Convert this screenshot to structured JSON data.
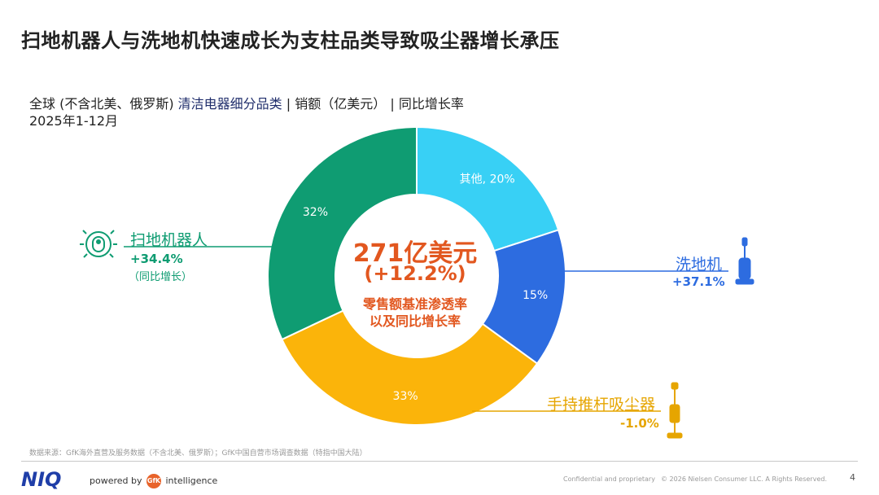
{
  "title": "扫地机器人与洗地机快速成长为支柱品类导致吸尘器增长承压",
  "subtitle": {
    "prefix": "全球 (不含北美、俄罗斯) ",
    "highlight": "清洁电器细分品类",
    "suffix": " | 销额（亿美元） | 同比增长率",
    "period": "2025年1-12月"
  },
  "center": {
    "amount": "271亿美元",
    "growth": "(+12.2%)",
    "desc_line1": "零售额基准渗透率",
    "desc_line2": "以及同比增长率"
  },
  "chart_data": {
    "type": "pie",
    "donut": true,
    "slices": [
      {
        "key": "other",
        "label": "其他, 20%",
        "value": 20,
        "color": "#38d0f5"
      },
      {
        "key": "mop",
        "label": "15%",
        "value": 15,
        "color": "#2d6ce0"
      },
      {
        "key": "vacuum",
        "label": "33%",
        "value": 33,
        "color": "#fbb40a"
      },
      {
        "key": "robot",
        "label": "32%",
        "value": 32,
        "color": "#0f9c72"
      }
    ]
  },
  "categories": {
    "robot": {
      "name": "扫地机器人",
      "growth": "+34.4%",
      "note": "（同比增长）",
      "color": "#0f9c72"
    },
    "mop": {
      "name": "洗地机",
      "growth": "+37.1%",
      "color": "#2d6ce0"
    },
    "vacuum": {
      "name": "手持推杆吸尘器",
      "growth": "-1.0%",
      "color": "#e6a500"
    }
  },
  "icons": {
    "robot": "robot-vacuum-icon",
    "mop": "floor-washer-icon",
    "vacuum": "stick-vacuum-icon"
  },
  "footer": {
    "source": "数据来源：GfK海外直营及服务数据（不含北美、俄罗斯）；GfK中国自营市场调查数据（特指中国大陆）",
    "brand": "NIQ",
    "powered_by": "powered by",
    "gfk_logo_text": "GfK",
    "intelligence": "intelligence",
    "confidential": "Confidential and proprietary",
    "copyright": "© 2026 Nielsen Consumer LLC. A  Rights Reserved.",
    "page": "4"
  }
}
